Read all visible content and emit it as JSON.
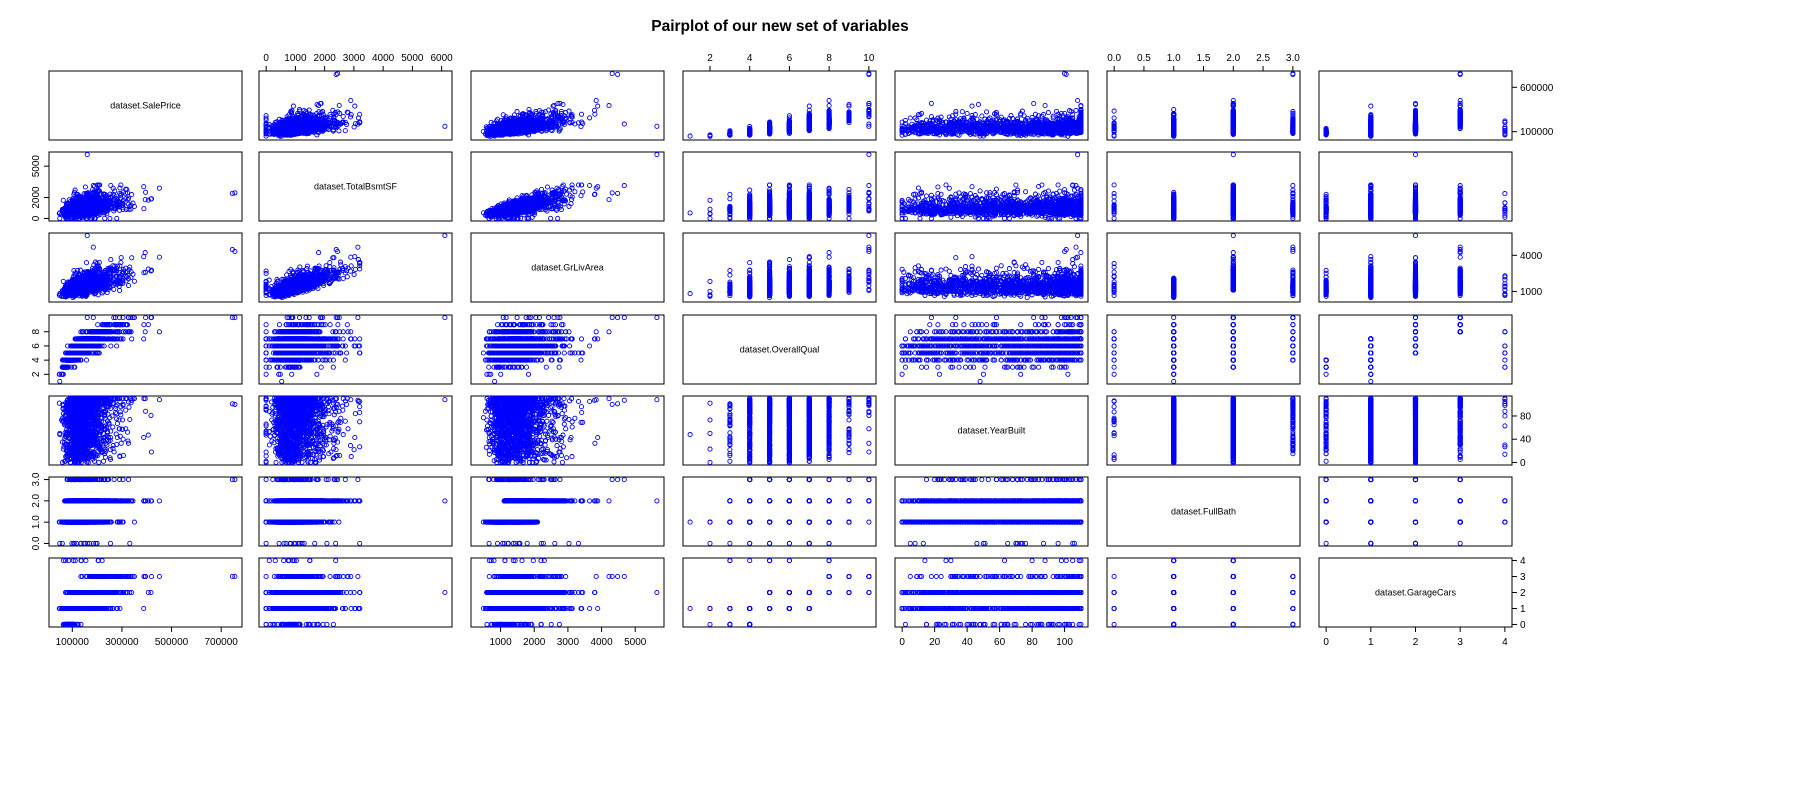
{
  "chart_data": {
    "type": "scatter",
    "title": "Pairplot of our new set of variables",
    "point_color": "#0000ff",
    "variables": [
      {
        "name": "dataset.SalePrice",
        "range": [
          34900,
          755000
        ],
        "ticks": [
          100000,
          300000,
          500000,
          700000
        ],
        "integer": false
      },
      {
        "name": "dataset.TotalBsmtSF",
        "range": [
          0,
          6110
        ],
        "ticks": [
          0,
          1000,
          2000,
          3000,
          4000,
          5000,
          6000
        ],
        "integer": false
      },
      {
        "name": "dataset.GrLivArea",
        "range": [
          334,
          5642
        ],
        "ticks": [
          1000,
          2000,
          3000,
          4000,
          5000
        ],
        "integer": false
      },
      {
        "name": "dataset.OverallQual",
        "range": [
          1,
          10
        ],
        "ticks": [
          2,
          4,
          6,
          8,
          10
        ],
        "integer": true
      },
      {
        "name": "dataset.YearBuilt",
        "range": [
          0,
          110
        ],
        "ticks": [
          0,
          20,
          40,
          60,
          80,
          100
        ],
        "integer": true
      },
      {
        "name": "dataset.FullBath",
        "range": [
          0,
          3
        ],
        "ticks": [
          0.0,
          0.5,
          1.0,
          1.5,
          2.0,
          2.5,
          3.0
        ],
        "integer": true
      },
      {
        "name": "dataset.GarageCars",
        "range": [
          0,
          4
        ],
        "ticks": [
          0,
          1,
          2,
          3,
          4
        ],
        "integer": true
      }
    ],
    "axis_tick_labels": {
      "top": [
        {
          "var": 1,
          "labels": [
            "0",
            "1000",
            "2000",
            "3000",
            "4000",
            "5000",
            "6000"
          ]
        },
        {
          "var": 3,
          "labels": [
            "2",
            "4",
            "6",
            "8",
            "10"
          ]
        },
        {
          "var": 5,
          "labels": [
            "0.0",
            "0.5",
            "1.0",
            "1.5",
            "2.0",
            "2.5",
            "3.0"
          ]
        }
      ],
      "bottom": [
        {
          "var": 0,
          "labels": [
            "100000",
            "300000",
            "500000",
            "700000"
          ]
        },
        {
          "var": 2,
          "labels": [
            "1000",
            "2000",
            "3000",
            "4000",
            "5000"
          ]
        },
        {
          "var": 4,
          "labels": [
            "0",
            "20",
            "40",
            "60",
            "80",
            "100"
          ]
        },
        {
          "var": 6,
          "labels": [
            "0",
            "1",
            "2",
            "3",
            "4"
          ]
        }
      ],
      "left": [
        {
          "var": 1,
          "labels": [
            "0",
            "2000",
            "5000"
          ]
        },
        {
          "var": 3,
          "labels": [
            "2",
            "4",
            "6",
            "8"
          ]
        },
        {
          "var": 5,
          "labels": [
            "0.0",
            "1.0",
            "2.0",
            "3.0"
          ]
        }
      ],
      "right": [
        {
          "var": 0,
          "labels": [
            "100000",
            "600000"
          ]
        },
        {
          "var": 2,
          "labels": [
            "1000",
            "4000"
          ]
        },
        {
          "var": 4,
          "labels": [
            "0",
            "40",
            "80"
          ]
        },
        {
          "var": 6,
          "labels": [
            "0",
            "1",
            "2",
            "3",
            "4"
          ]
        }
      ]
    },
    "n_points": 1460
  }
}
